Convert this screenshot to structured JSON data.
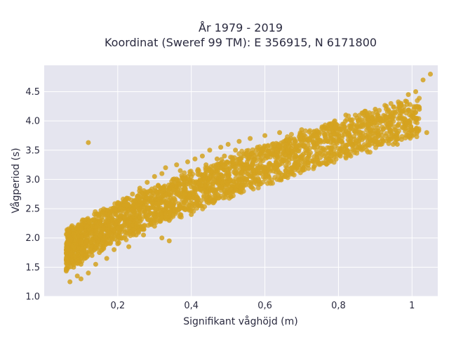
{
  "chart_data": {
    "type": "scatter",
    "title_line1": "År 1979 - 2019",
    "title_line2": "Koordinat (Sweref 99 TM): E 356915, N 6171800",
    "xlabel": "Signifikant våghöjd (m)",
    "ylabel": "Vågperiod (s)",
    "xlim": [
      0.0,
      1.07
    ],
    "ylim": [
      1.0,
      4.95
    ],
    "x_ticks": [
      0.2,
      0.4,
      0.6,
      0.8,
      1.0
    ],
    "x_tick_labels": [
      "0,2",
      "0,4",
      "0,6",
      "0,8",
      "1"
    ],
    "y_ticks": [
      1.0,
      1.5,
      2.0,
      2.5,
      3.0,
      3.5,
      4.0,
      4.5
    ],
    "y_tick_labels": [
      "1.0",
      "1.5",
      "2.0",
      "2.5",
      "3.0",
      "3.5",
      "4.0",
      "4.5"
    ],
    "grid": true,
    "colors": {
      "plot_bg": "#e5e5ef",
      "grid": "#ffffff",
      "marker": "#d4a21f",
      "text": "#2a2a3f"
    },
    "series": [
      {
        "points": [
          [
            0.06,
            1.45
          ],
          [
            0.07,
            1.25
          ],
          [
            0.08,
            1.5
          ],
          [
            0.09,
            1.35
          ],
          [
            0.1,
            1.3
          ],
          [
            0.1,
            1.55
          ],
          [
            0.11,
            1.65
          ],
          [
            0.12,
            1.4
          ],
          [
            0.12,
            1.85
          ],
          [
            0.13,
            1.7
          ],
          [
            0.14,
            1.95
          ],
          [
            0.14,
            1.55
          ],
          [
            0.15,
            2.05
          ],
          [
            0.15,
            1.75
          ],
          [
            0.16,
            2.2
          ],
          [
            0.16,
            1.85
          ],
          [
            0.17,
            2.3
          ],
          [
            0.17,
            1.65
          ],
          [
            0.18,
            2.45
          ],
          [
            0.18,
            2.0
          ],
          [
            0.19,
            2.15
          ],
          [
            0.19,
            1.8
          ],
          [
            0.2,
            2.55
          ],
          [
            0.2,
            2.25
          ],
          [
            0.2,
            1.9
          ],
          [
            0.21,
            2.35
          ],
          [
            0.21,
            2.0
          ],
          [
            0.22,
            2.65
          ],
          [
            0.22,
            2.1
          ],
          [
            0.23,
            2.5
          ],
          [
            0.23,
            1.85
          ],
          [
            0.24,
            2.75
          ],
          [
            0.24,
            2.3
          ],
          [
            0.25,
            2.6
          ],
          [
            0.25,
            2.05
          ],
          [
            0.26,
            2.85
          ],
          [
            0.26,
            2.4
          ],
          [
            0.27,
            2.7
          ],
          [
            0.27,
            2.15
          ],
          [
            0.28,
            2.95
          ],
          [
            0.28,
            2.5
          ],
          [
            0.29,
            2.8
          ],
          [
            0.29,
            2.25
          ],
          [
            0.3,
            3.05
          ],
          [
            0.3,
            2.6
          ],
          [
            0.3,
            2.2
          ],
          [
            0.31,
            2.9
          ],
          [
            0.31,
            2.35
          ],
          [
            0.32,
            3.1
          ],
          [
            0.32,
            2.7
          ],
          [
            0.33,
            2.45
          ],
          [
            0.33,
            3.2
          ],
          [
            0.34,
            2.85
          ],
          [
            0.34,
            2.3
          ],
          [
            0.35,
            3.0
          ],
          [
            0.35,
            2.55
          ],
          [
            0.36,
            3.25
          ],
          [
            0.36,
            2.75
          ],
          [
            0.37,
            2.4
          ],
          [
            0.37,
            3.15
          ],
          [
            0.38,
            2.9
          ],
          [
            0.38,
            2.6
          ],
          [
            0.39,
            3.3
          ],
          [
            0.39,
            2.5
          ],
          [
            0.4,
            3.05
          ],
          [
            0.4,
            2.7
          ],
          [
            0.4,
            2.4
          ],
          [
            0.41,
            3.35
          ],
          [
            0.41,
            2.85
          ],
          [
            0.42,
            3.15
          ],
          [
            0.42,
            2.55
          ],
          [
            0.43,
            3.4
          ],
          [
            0.43,
            2.95
          ],
          [
            0.44,
            2.65
          ],
          [
            0.44,
            3.25
          ],
          [
            0.45,
            3.5
          ],
          [
            0.45,
            2.8
          ],
          [
            0.46,
            3.1
          ],
          [
            0.46,
            2.6
          ],
          [
            0.47,
            3.35
          ],
          [
            0.47,
            2.95
          ],
          [
            0.48,
            3.55
          ],
          [
            0.48,
            3.2
          ],
          [
            0.49,
            2.75
          ],
          [
            0.49,
            3.4
          ],
          [
            0.5,
            3.05
          ],
          [
            0.5,
            3.6
          ],
          [
            0.51,
            2.85
          ],
          [
            0.51,
            3.3
          ],
          [
            0.52,
            3.5
          ],
          [
            0.52,
            3.1
          ],
          [
            0.53,
            2.9
          ],
          [
            0.53,
            3.65
          ],
          [
            0.54,
            3.25
          ],
          [
            0.55,
            3.45
          ],
          [
            0.55,
            3.0
          ],
          [
            0.56,
            3.7
          ],
          [
            0.57,
            3.35
          ],
          [
            0.57,
            3.1
          ],
          [
            0.58,
            3.55
          ],
          [
            0.59,
            3.2
          ],
          [
            0.6,
            3.75
          ],
          [
            0.6,
            3.4
          ],
          [
            0.61,
            3.05
          ],
          [
            0.62,
            3.6
          ],
          [
            0.63,
            3.3
          ],
          [
            0.64,
            3.8
          ],
          [
            0.65,
            3.45
          ],
          [
            0.66,
            3.2
          ],
          [
            0.67,
            3.7
          ],
          [
            0.68,
            3.5
          ],
          [
            0.69,
            3.3
          ],
          [
            0.7,
            3.85
          ],
          [
            0.71,
            3.55
          ],
          [
            0.72,
            3.4
          ],
          [
            0.73,
            3.75
          ],
          [
            0.74,
            3.6
          ],
          [
            0.75,
            3.45
          ],
          [
            0.76,
            3.9
          ],
          [
            0.77,
            3.65
          ],
          [
            0.78,
            3.5
          ],
          [
            0.79,
            4.0
          ],
          [
            0.8,
            3.75
          ],
          [
            0.81,
            3.55
          ],
          [
            0.82,
            4.1
          ],
          [
            0.83,
            3.85
          ],
          [
            0.84,
            3.6
          ],
          [
            0.85,
            4.05
          ],
          [
            0.86,
            3.8
          ],
          [
            0.87,
            4.15
          ],
          [
            0.88,
            3.65
          ],
          [
            0.89,
            3.95
          ],
          [
            0.9,
            4.2
          ],
          [
            0.91,
            3.75
          ],
          [
            0.92,
            4.0
          ],
          [
            0.93,
            4.25
          ],
          [
            0.94,
            3.85
          ],
          [
            0.95,
            4.15
          ],
          [
            0.96,
            3.6
          ],
          [
            0.97,
            4.3
          ],
          [
            0.98,
            4.0
          ],
          [
            0.99,
            4.45
          ],
          [
            1.0,
            3.85
          ],
          [
            1.01,
            4.5
          ],
          [
            1.02,
            4.2
          ],
          [
            1.03,
            4.7
          ],
          [
            1.04,
            3.8
          ],
          [
            1.05,
            4.8
          ],
          [
            0.12,
            3.63
          ],
          [
            0.27,
            2.05
          ],
          [
            0.32,
            2.0
          ],
          [
            0.34,
            1.95
          ]
        ]
      }
    ]
  }
}
